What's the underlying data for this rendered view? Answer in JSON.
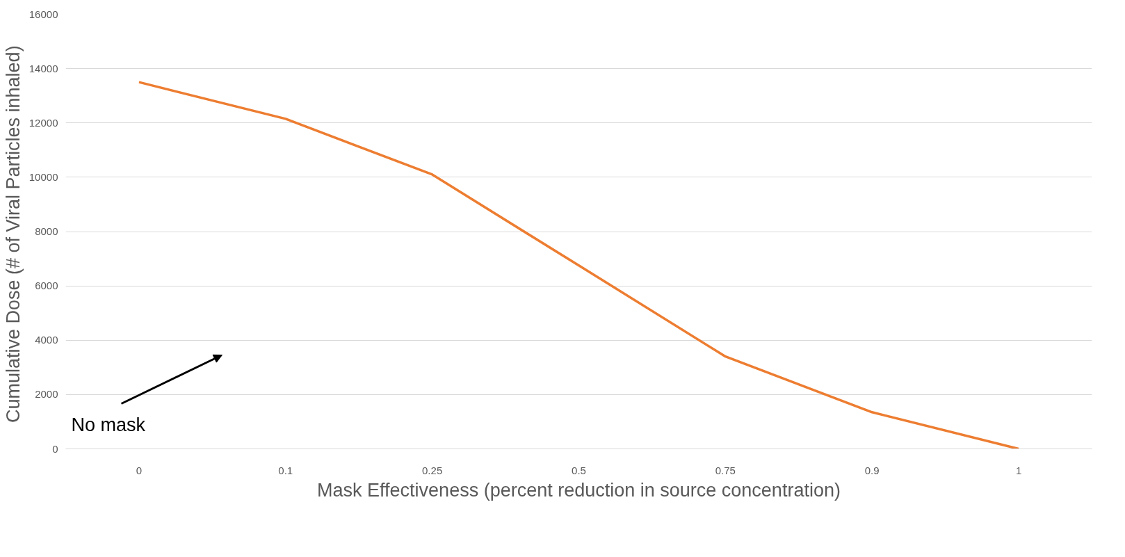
{
  "chart_data": {
    "type": "line",
    "xlabel": "Mask Effectiveness (percent reduction in source concentration)",
    "ylabel": "Cumulative Dose (# of  Viral Particles inhaled)",
    "categories": [
      "0",
      "0.1",
      "0.25",
      "0.5",
      "0.75",
      "0.9",
      "1"
    ],
    "series": [
      {
        "color": "#ed7d31",
        "values": [
          13500,
          12150,
          10100,
          6750,
          3400,
          1350,
          0
        ]
      }
    ],
    "ylim": [
      0,
      16000
    ],
    "yticks": [
      0,
      2000,
      4000,
      6000,
      8000,
      10000,
      12000,
      14000,
      16000
    ],
    "grid": "y",
    "marker": "none",
    "line_style": "solid",
    "annotations": [
      "No mask"
    ]
  }
}
